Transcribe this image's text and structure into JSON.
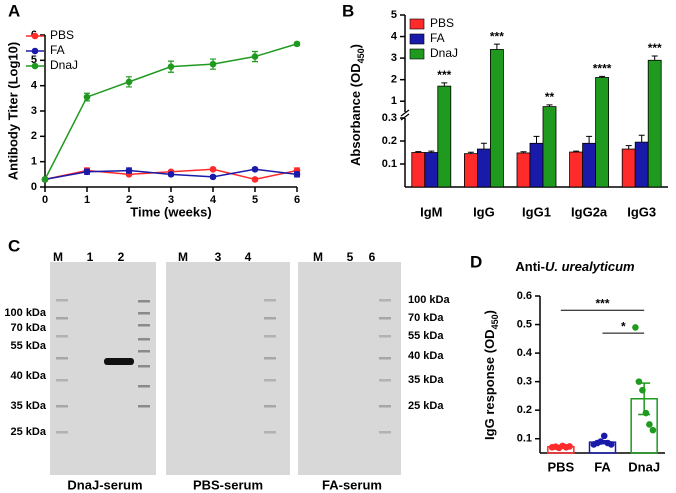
{
  "chart_data": [
    {
      "type": "line",
      "panel": "A",
      "ylabel": "Antibody  Titer (Log10)",
      "xlabel": "Time (weeks)",
      "x": [
        0,
        1,
        2,
        3,
        4,
        5,
        6
      ],
      "xlim": [
        0,
        6
      ],
      "xticks": [
        0,
        1,
        2,
        3,
        4,
        5,
        6
      ],
      "ylim": [
        0,
        6
      ],
      "yticks": [
        0,
        1,
        2,
        3,
        4,
        5,
        6
      ],
      "legend": "top-left",
      "series": [
        {
          "name": "PBS",
          "color": "#ff2a2a",
          "values": [
            0.3,
            0.65,
            0.5,
            0.6,
            0.7,
            0.3,
            0.65
          ],
          "errors": [
            0.05,
            0.1,
            0.05,
            0.05,
            0.05,
            0.05,
            0.1
          ]
        },
        {
          "name": "FA",
          "color": "#1a1aaa",
          "values": [
            0.3,
            0.6,
            0.65,
            0.5,
            0.4,
            0.7,
            0.5
          ],
          "errors": [
            0.05,
            0.1,
            0.1,
            0.05,
            0.05,
            0.05,
            0.1
          ]
        },
        {
          "name": "DnaJ",
          "color": "#1f9a1f",
          "values": [
            0.3,
            3.55,
            4.15,
            4.75,
            4.85,
            5.15,
            5.65
          ],
          "errors": [
            0.05,
            0.15,
            0.2,
            0.22,
            0.2,
            0.2,
            0.06
          ]
        }
      ]
    },
    {
      "type": "broken-bar",
      "panel": "B",
      "ylabel": "Absorbance (OD",
      "ylabel_subscript": "450",
      "ylabel_suffix": ")",
      "categories": [
        "IgM",
        "IgG",
        "IgG1",
        "IgG2a",
        "IgG3"
      ],
      "ylim": [
        0,
        0.3
      ],
      "yticks": [
        0.1,
        0.2,
        0.3
      ],
      "ylim_upper": [
        0.5,
        5
      ],
      "yticks_upper": [
        1,
        2,
        3,
        4,
        5
      ],
      "legend": "top-left",
      "series": [
        {
          "name": "PBS",
          "color": "#ff2a2a",
          "values": [
            0.15,
            0.145,
            0.148,
            0.152,
            0.165
          ],
          "errors": [
            0.004,
            0.006,
            0.005,
            0.004,
            0.015
          ]
        },
        {
          "name": "FA",
          "color": "#1a1aaa",
          "values": [
            0.15,
            0.165,
            0.19,
            0.19,
            0.195
          ],
          "errors": [
            0.006,
            0.025,
            0.03,
            0.03,
            0.03
          ]
        },
        {
          "name": "DnaJ",
          "color": "#1f9a1f",
          "values": [
            1.7,
            3.4,
            0.75,
            2.1,
            2.9
          ],
          "errors": [
            0.15,
            0.25,
            0.08,
            0.05,
            0.2
          ]
        }
      ],
      "annotations": [
        "***",
        "***",
        "**",
        "****",
        "***"
      ]
    },
    {
      "type": "dot",
      "panel": "D",
      "title": "Anti-",
      "title_italic": "U. urealyticum",
      "title_suffix": "",
      "ylabel": "IgG response (OD",
      "ylabel_subscript": "450",
      "ylabel_suffix": ")",
      "categories": [
        "PBS",
        "FA",
        "DnaJ"
      ],
      "colors": [
        "#ff2a2a",
        "#1a1aaa",
        "#1f9a1f"
      ],
      "points": [
        [
          0.07,
          0.072,
          0.068,
          0.075,
          0.07,
          0.073
        ],
        [
          0.08,
          0.085,
          0.09,
          0.11,
          0.085,
          0.08
        ],
        [
          0.49,
          0.3,
          0.27,
          0.19,
          0.15,
          0.13
        ]
      ],
      "means": [
        0.072,
        0.088,
        0.24
      ],
      "sems": [
        0.003,
        0.005,
        0.055
      ],
      "ylim": [
        0.05,
        0.6
      ],
      "yticks": [
        0.1,
        0.2,
        0.3,
        0.4,
        0.5,
        0.6
      ],
      "comparisons": [
        {
          "from": 0,
          "to": 2,
          "label": "***",
          "y": 0.55
        },
        {
          "from": 1,
          "to": 2,
          "label": "*",
          "y": 0.47
        }
      ]
    }
  ],
  "blot_panel": {
    "panel": "C",
    "blots": [
      {
        "lanes": [
          "M",
          "1",
          "2"
        ],
        "caption": "DnaJ-serum",
        "markers": [
          "100 kDa",
          "70 kDa",
          "55 kDa",
          "40 kDa",
          "35 kDa",
          "25 kDa"
        ]
      },
      {
        "lanes": [
          "M",
          "3",
          "4"
        ],
        "caption": "PBS-serum",
        "markers": []
      },
      {
        "lanes": [
          "M",
          "5",
          "6"
        ],
        "caption": "FA-serum",
        "markers": [
          "100 kDa",
          "70 kDa",
          "55 kDa",
          "40 kDa",
          "35 kDa",
          "25 kDa"
        ]
      }
    ]
  }
}
